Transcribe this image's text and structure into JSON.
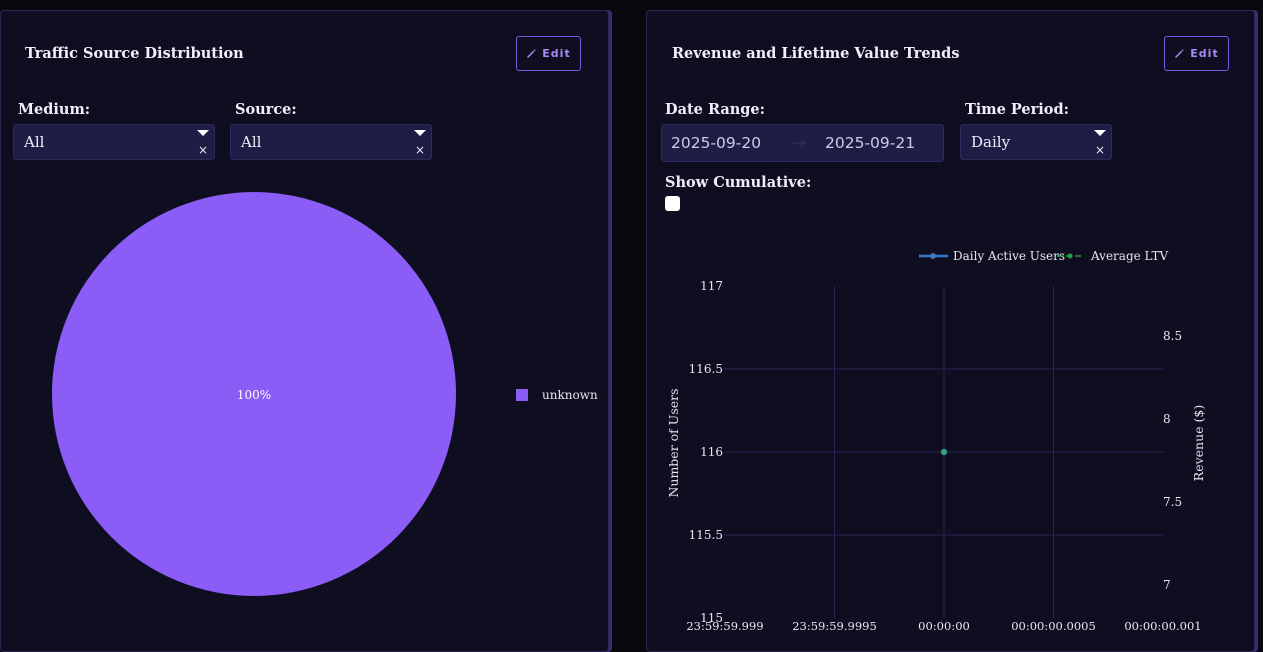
{
  "left_panel": {
    "title": "Traffic Source Distribution",
    "edit_label": "Edit",
    "medium_label": "Medium:",
    "medium_value": "All",
    "source_label": "Source:",
    "source_value": "All",
    "clear_glyph": "×"
  },
  "right_panel": {
    "title": "Revenue and Lifetime Value Trends",
    "edit_label": "Edit",
    "date_range_label": "Date Range:",
    "date_start": "2025-09-20",
    "date_arrow": "→",
    "date_end": "2025-09-21",
    "time_period_label": "Time Period:",
    "time_period_value": "Daily",
    "show_cumulative_label": "Show Cumulative:",
    "clear_glyph": "×"
  },
  "colors": {
    "pie_slice": "#8b5cf6",
    "accent": "#7b55e6",
    "users_line": "#3a78c2",
    "ltv_line": "#2a9d3f",
    "ltv_point": "#2fa86a",
    "grid": "#2a2456"
  },
  "chart_data": [
    {
      "type": "pie",
      "slices": [
        {
          "label": "unknown",
          "value": 100,
          "text": "100%"
        }
      ],
      "legend_position": "right"
    },
    {
      "type": "line",
      "legend": [
        "Daily Active Users",
        "Average LTV"
      ],
      "legend_position": "top-right",
      "x_ticks": [
        "23:59:59.999",
        "23:59:59.9995",
        "00:00:00",
        "00:00:00.0005",
        "00:00:00.001"
      ],
      "y_left": {
        "label": "Number of Users",
        "range": [
          115,
          117
        ],
        "ticks": [
          "115",
          "115.5",
          "116",
          "116.5",
          "117"
        ]
      },
      "y_right": {
        "label": "Revenue ($)",
        "range": [
          6.8,
          8.8
        ],
        "ticks": [
          "7",
          "7.5",
          "8",
          "8.5"
        ]
      },
      "series": [
        {
          "name": "Daily Active Users",
          "axis": "left",
          "x_index": [
            2
          ],
          "values": [
            116
          ]
        },
        {
          "name": "Average LTV",
          "axis": "right",
          "x_index": [
            2
          ],
          "values": [
            7.8
          ]
        }
      ]
    }
  ]
}
